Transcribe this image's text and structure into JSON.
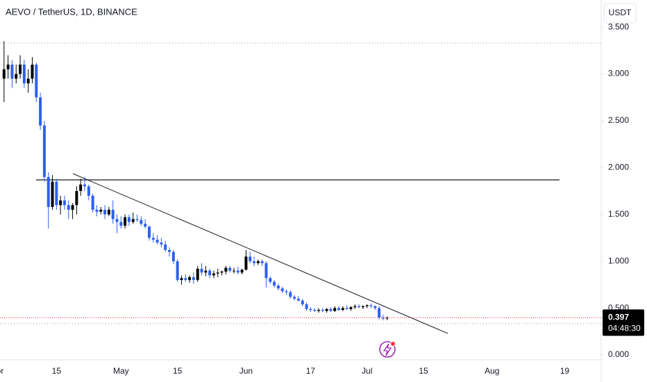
{
  "chart_data": {
    "type": "candlestick",
    "title": "AEVO / TetherUS, 1D, BINANCE",
    "currency_button": "USDT",
    "categories": [
      "pr",
      null,
      null,
      null,
      null,
      null,
      null,
      null,
      null,
      null,
      null,
      null,
      null,
      null,
      "15",
      null,
      null,
      null,
      null,
      null,
      null,
      null,
      null,
      null,
      null,
      null,
      null,
      null,
      null,
      null,
      "May",
      null,
      null,
      null,
      null,
      null,
      null,
      null,
      null,
      null,
      null,
      null,
      null,
      null,
      "15",
      null,
      null,
      null,
      null,
      null,
      null,
      null,
      null,
      null,
      null,
      null,
      null,
      null,
      null,
      null,
      null,
      "Jun",
      null,
      null,
      null,
      null,
      null,
      null,
      null,
      null,
      null,
      null,
      null,
      null,
      null,
      null,
      null,
      "17",
      null,
      null,
      null,
      null,
      null,
      null,
      null,
      null,
      null,
      null,
      null,
      null,
      null,
      "Jul",
      null,
      null,
      null,
      null,
      null,
      null,
      null,
      null,
      null,
      null,
      null,
      null,
      null,
      "15",
      null,
      null,
      null,
      null,
      null,
      null,
      null,
      null,
      null,
      null,
      null,
      null,
      null,
      null,
      null,
      null,
      "Aug",
      null,
      null,
      null,
      null,
      null,
      null,
      null,
      null,
      null,
      null,
      null,
      null,
      null,
      null,
      null,
      null,
      null,
      "19"
    ],
    "open": [
      null,
      2.95,
      3.05,
      3.1,
      2.95,
      3.0,
      3.1,
      2.9,
      2.95,
      3.1,
      2.75,
      2.45,
      1.9,
      1.58,
      1.85,
      1.6,
      1.65,
      1.6,
      1.55,
      1.6,
      1.75,
      1.82,
      1.8,
      1.7,
      1.55,
      1.53,
      1.55,
      1.5,
      1.55,
      1.45,
      1.42,
      1.38,
      1.47,
      1.42,
      1.45,
      1.44,
      1.4,
      1.37,
      1.25,
      1.23,
      1.2,
      1.18,
      1.12,
      1.1,
      1.0,
      0.8,
      0.82,
      0.8,
      0.83,
      0.8,
      0.92,
      0.88,
      0.9,
      0.85,
      0.87,
      0.88,
      0.89,
      0.93,
      0.9,
      0.9,
      0.88,
      0.91,
      1.05,
      1.0,
      0.98,
      1.0,
      0.98,
      0.82,
      0.78,
      0.74,
      0.71,
      0.68,
      0.67,
      0.62,
      0.6,
      0.58,
      0.54,
      0.49,
      0.48,
      0.47,
      0.48,
      0.47,
      0.49,
      0.47,
      0.5,
      0.48,
      0.5,
      0.49,
      0.51,
      0.52,
      0.51,
      0.52,
      0.53,
      0.52,
      0.5,
      0.4,
      0.39,
      null,
      null,
      null,
      null,
      null,
      null,
      null,
      null,
      null,
      null,
      null,
      null,
      null,
      null,
      null,
      null,
      null,
      null,
      null,
      null,
      null,
      null,
      null,
      null,
      null,
      null,
      null,
      null,
      null,
      null,
      null,
      null,
      null,
      null,
      null,
      null,
      null,
      null,
      null,
      null,
      null,
      null,
      null,
      null
    ],
    "high": [
      null,
      3.35,
      3.2,
      3.15,
      3.1,
      3.2,
      3.15,
      3.05,
      3.18,
      3.12,
      2.8,
      2.5,
      1.95,
      1.92,
      1.88,
      1.7,
      1.7,
      1.65,
      1.62,
      1.8,
      1.88,
      1.9,
      1.82,
      1.72,
      1.6,
      1.58,
      1.6,
      1.58,
      1.65,
      1.5,
      1.48,
      1.5,
      1.5,
      1.52,
      1.5,
      1.48,
      1.45,
      1.38,
      1.3,
      1.28,
      1.25,
      1.22,
      1.15,
      1.12,
      1.02,
      0.85,
      0.86,
      0.85,
      0.88,
      0.95,
      0.98,
      0.95,
      0.92,
      0.9,
      0.92,
      0.9,
      0.95,
      0.95,
      0.93,
      0.94,
      0.92,
      1.12,
      1.1,
      1.05,
      1.02,
      1.02,
      1.0,
      0.84,
      0.8,
      0.76,
      0.73,
      0.7,
      0.69,
      0.64,
      0.63,
      0.6,
      0.56,
      0.51,
      0.5,
      0.5,
      0.5,
      0.5,
      0.51,
      0.52,
      0.52,
      0.52,
      0.53,
      0.52,
      0.54,
      0.54,
      0.53,
      0.54,
      0.55,
      0.53,
      0.52,
      0.43,
      0.41,
      null,
      null,
      null,
      null,
      null,
      null,
      null,
      null,
      null,
      null,
      null,
      null,
      null,
      null,
      null,
      null,
      null,
      null,
      null,
      null,
      null,
      null,
      null,
      null,
      null,
      null,
      null,
      null,
      null,
      null,
      null,
      null,
      null,
      null,
      null,
      null,
      null,
      null,
      null,
      null,
      null,
      null,
      null,
      null
    ],
    "low": [
      null,
      2.7,
      2.95,
      2.85,
      2.9,
      2.95,
      2.85,
      2.8,
      2.9,
      2.7,
      2.4,
      1.85,
      1.35,
      1.55,
      1.55,
      1.5,
      1.55,
      1.45,
      1.45,
      1.5,
      1.7,
      1.75,
      1.65,
      1.52,
      1.48,
      1.5,
      1.45,
      1.48,
      1.4,
      1.3,
      1.35,
      1.35,
      1.38,
      1.4,
      1.42,
      1.38,
      1.35,
      1.22,
      1.2,
      1.18,
      1.15,
      1.1,
      1.05,
      0.97,
      0.78,
      0.75,
      0.78,
      0.77,
      0.76,
      0.78,
      0.85,
      0.84,
      0.82,
      0.82,
      0.83,
      0.85,
      0.86,
      0.88,
      0.87,
      0.86,
      0.86,
      0.9,
      0.98,
      0.95,
      0.96,
      0.95,
      0.72,
      0.76,
      0.72,
      0.69,
      0.66,
      0.64,
      0.6,
      0.58,
      0.57,
      0.52,
      0.47,
      0.46,
      0.46,
      0.45,
      0.46,
      0.45,
      0.46,
      0.46,
      0.47,
      0.47,
      0.48,
      0.47,
      0.49,
      0.5,
      0.49,
      0.5,
      0.5,
      0.48,
      0.38,
      0.37,
      0.37,
      null,
      null,
      null,
      null,
      null,
      null,
      null,
      null,
      null,
      null,
      null,
      null,
      null,
      null,
      null,
      null,
      null,
      null,
      null,
      null,
      null,
      null,
      null,
      null,
      null,
      null,
      null,
      null,
      null,
      null,
      null,
      null,
      null,
      null,
      null,
      null,
      null,
      null,
      null,
      null,
      null,
      null,
      null,
      null
    ],
    "close": [
      null,
      3.05,
      3.1,
      2.95,
      3.0,
      3.1,
      2.9,
      2.95,
      3.1,
      2.75,
      2.45,
      1.9,
      1.58,
      1.85,
      1.6,
      1.65,
      1.6,
      1.55,
      1.6,
      1.75,
      1.82,
      1.8,
      1.7,
      1.55,
      1.53,
      1.55,
      1.5,
      1.55,
      1.45,
      1.42,
      1.38,
      1.47,
      1.42,
      1.45,
      1.44,
      1.4,
      1.37,
      1.25,
      1.23,
      1.2,
      1.18,
      1.12,
      1.1,
      1.0,
      0.8,
      0.82,
      0.8,
      0.83,
      0.8,
      0.92,
      0.88,
      0.9,
      0.85,
      0.87,
      0.88,
      0.89,
      0.93,
      0.9,
      0.9,
      0.88,
      0.91,
      1.05,
      1.0,
      0.98,
      1.0,
      0.98,
      0.82,
      0.78,
      0.74,
      0.71,
      0.68,
      0.67,
      0.62,
      0.6,
      0.58,
      0.54,
      0.49,
      0.48,
      0.47,
      0.48,
      0.47,
      0.49,
      0.47,
      0.5,
      0.48,
      0.5,
      0.49,
      0.51,
      0.52,
      0.51,
      0.52,
      0.53,
      0.52,
      0.5,
      0.4,
      0.39,
      0.397,
      null,
      null,
      null,
      null,
      null,
      null,
      null,
      null,
      null,
      null,
      null,
      null,
      null,
      null,
      null,
      null,
      null,
      null,
      null,
      null,
      null,
      null,
      null,
      null,
      null,
      null,
      null,
      null,
      null,
      null,
      null,
      null,
      null,
      null,
      null,
      null,
      null,
      null,
      null,
      null,
      null,
      null,
      null,
      null
    ],
    "up_color": "#000000",
    "down_color": "#2f5ff0",
    "ylim": [
      0,
      3.79
    ],
    "yticks": [
      {
        "value": 0,
        "label": "0.000"
      },
      {
        "value": 0.5,
        "label": "0.500"
      },
      {
        "value": 1,
        "label": "1.000"
      },
      {
        "value": 1.5,
        "label": "1.500"
      },
      {
        "value": 2,
        "label": "2.000"
      },
      {
        "value": 2.5,
        "label": "2.500"
      },
      {
        "value": 3,
        "label": "3.000"
      },
      {
        "value": 3.5,
        "label": "3.500"
      }
    ],
    "last_price": 0.397,
    "countdown": "04:48:30",
    "last_price_color": "#f23645"
  }
}
